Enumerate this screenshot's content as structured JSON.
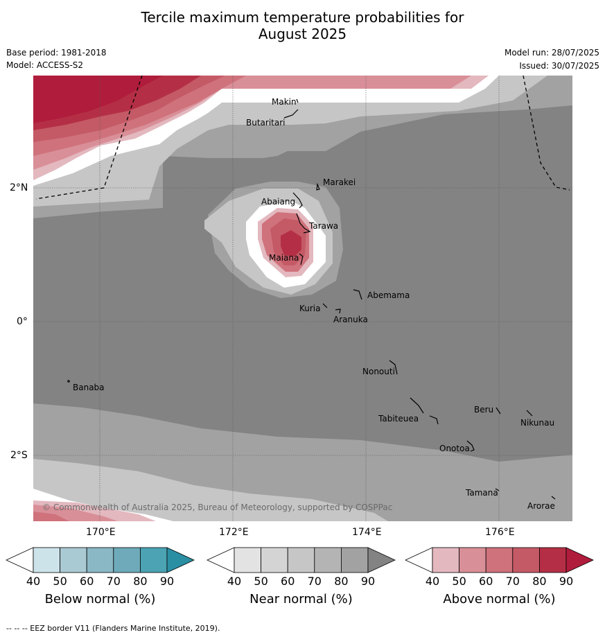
{
  "header": {
    "title_line1": "Tercile maximum temperature probabilities for",
    "title_line2": "August 2025",
    "base_period": "Base period: 1981-2018",
    "model": "Model: ACCESS-S2",
    "model_run": "Model run: 28/07/2025",
    "issued": "Issued: 30/07/2025"
  },
  "map": {
    "lat_labels": [
      "2°N",
      "0°",
      "2°S"
    ],
    "lon_labels": [
      "170°E",
      "172°E",
      "174°E",
      "176°E"
    ],
    "places": [
      {
        "name": "Makin"
      },
      {
        "name": "Butaritari"
      },
      {
        "name": "Marakei"
      },
      {
        "name": "Abaiang"
      },
      {
        "name": "Tarawa"
      },
      {
        "name": "Maiana"
      },
      {
        "name": "Abemama"
      },
      {
        "name": "Kuria"
      },
      {
        "name": "Aranuka"
      },
      {
        "name": "Nonouti"
      },
      {
        "name": "Banaba"
      },
      {
        "name": "Beru"
      },
      {
        "name": "Tabiteuea"
      },
      {
        "name": "Nikunau"
      },
      {
        "name": "Onotoa"
      },
      {
        "name": "Tamana"
      },
      {
        "name": "Arorae"
      }
    ],
    "copyright": "© Commonwealth of Australia 2025, Bureau of Meteorology, supported by COSPPac"
  },
  "colorbars": [
    {
      "title": "Below normal (%)",
      "ticks": [
        "40",
        "50",
        "60",
        "70",
        "80",
        "90"
      ],
      "colors": [
        "#ffffff",
        "#cde3ea",
        "#a9c9d3",
        "#8ab8c5",
        "#6eaab9",
        "#4ba3b3",
        "#2a8fa3"
      ]
    },
    {
      "title": "Near normal (%)",
      "ticks": [
        "40",
        "50",
        "60",
        "70",
        "80",
        "90"
      ],
      "colors": [
        "#ffffff",
        "#e3e3e3",
        "#d4d4d4",
        "#c6c6c6",
        "#b4b4b4",
        "#a2a2a2",
        "#838383"
      ]
    },
    {
      "title": "Above normal (%)",
      "ticks": [
        "40",
        "50",
        "60",
        "70",
        "80",
        "90"
      ],
      "colors": [
        "#ffffff",
        "#e3b8bf",
        "#d98f98",
        "#cf727c",
        "#c45a66",
        "#b42f45",
        "#b01c3c"
      ]
    }
  ],
  "footer": "--  --  -- EEZ border V11 (Flanders Marine Institute, 2019)."
}
